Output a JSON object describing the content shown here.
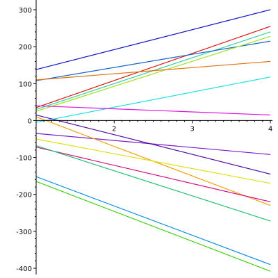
{
  "chart_data": {
    "type": "line",
    "title": "",
    "xlabel": "",
    "ylabel": "",
    "xlim": [
      1,
      4
    ],
    "ylim": [
      -410,
      305
    ],
    "grid": false,
    "legend": "none",
    "x_ticks": [
      {
        "value": 2,
        "label": "2"
      },
      {
        "value": 3,
        "label": "3"
      },
      {
        "value": 4,
        "label": "4"
      }
    ],
    "y_ticks": [
      {
        "value": 300,
        "label": "300"
      },
      {
        "value": 200,
        "label": "200"
      },
      {
        "value": 100,
        "label": "100"
      },
      {
        "value": 0,
        "label": "0"
      },
      {
        "value": -100,
        "label": "-100"
      },
      {
        "value": -200,
        "label": "-200"
      },
      {
        "value": -300,
        "label": "-300"
      },
      {
        "value": -400,
        "label": "-400"
      }
    ],
    "series": [
      {
        "color": "#1010c8",
        "x": [
          1,
          4
        ],
        "y": [
          138,
          300
        ]
      },
      {
        "color": "#e01010",
        "x": [
          1,
          4
        ],
        "y": [
          35,
          255
        ]
      },
      {
        "color": "#30d0a0",
        "x": [
          1,
          4
        ],
        "y": [
          30,
          240
        ]
      },
      {
        "color": "#1060d0",
        "x": [
          1,
          4
        ],
        "y": [
          108,
          215
        ]
      },
      {
        "color": "#a0e020",
        "x": [
          1,
          4
        ],
        "y": [
          25,
          228
        ]
      },
      {
        "color": "#e07010",
        "x": [
          1,
          4
        ],
        "y": [
          110,
          160
        ]
      },
      {
        "color": "#20e0e0",
        "x": [
          1,
          4
        ],
        "y": [
          -5,
          118
        ]
      },
      {
        "color": "#e010e0",
        "x": [
          1,
          4
        ],
        "y": [
          40,
          15
        ]
      },
      {
        "color": "#7a1ad0",
        "x": [
          1,
          4
        ],
        "y": [
          -35,
          -92
        ]
      },
      {
        "color": "#f0a010",
        "x": [
          1,
          4
        ],
        "y": [
          10,
          -230
        ]
      },
      {
        "color": "#5010a0",
        "x": [
          1,
          4
        ],
        "y": [
          15,
          -145
        ]
      },
      {
        "color": "#e0e010",
        "x": [
          1,
          4
        ],
        "y": [
          -50,
          -170
        ]
      },
      {
        "color": "#d01080",
        "x": [
          1,
          4
        ],
        "y": [
          -72,
          -220
        ]
      },
      {
        "color": "#20c070",
        "x": [
          1,
          4
        ],
        "y": [
          -68,
          -272
        ]
      },
      {
        "color": "#1090e0",
        "x": [
          1,
          4
        ],
        "y": [
          -152,
          -390
        ]
      },
      {
        "color": "#40d010",
        "x": [
          1,
          4
        ],
        "y": [
          -165,
          -408
        ]
      }
    ]
  }
}
